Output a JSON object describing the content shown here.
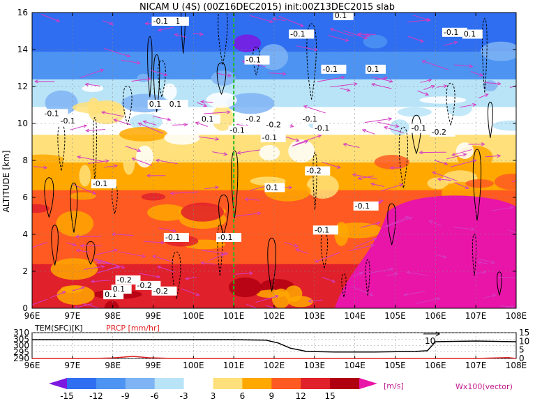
{
  "chart_data": [
    {
      "type": "heatmap",
      "title": "NICAM U (4S) (00Z16DEC2015) init:00Z13DEC2015 slab",
      "ylabel": "ALTITUDE [km]",
      "xlabel": "",
      "xlim": [
        96,
        108
      ],
      "ylim": [
        0,
        16
      ],
      "x_ticks": [
        "96E",
        "97E",
        "98E",
        "99E",
        "100E",
        "101E",
        "102E",
        "103E",
        "104E",
        "105E",
        "106E",
        "107E",
        "108E"
      ],
      "y_ticks": [
        "0",
        "2",
        "4",
        "6",
        "8",
        "10",
        "12",
        "14",
        "16"
      ],
      "grid": true,
      "marker_line_x": 101,
      "layers": [
        {
          "alt": [
            0,
            2.5
          ],
          "value": 12
        },
        {
          "alt": [
            2.5,
            4.5
          ],
          "value": 11
        },
        {
          "alt": [
            4.5,
            6.5
          ],
          "value": 10
        },
        {
          "alt": [
            6.5,
            8
          ],
          "value": 8
        },
        {
          "alt": [
            8,
            9.5
          ],
          "value": 5
        },
        {
          "alt": [
            9.5,
            11
          ],
          "value": 0
        },
        {
          "alt": [
            11,
            12.5
          ],
          "value": -4
        },
        {
          "alt": [
            12.5,
            14
          ],
          "value": -10
        },
        {
          "alt": [
            14,
            16
          ],
          "value": -15
        }
      ],
      "contour_labels": [
        {
          "text": "-0.1",
          "x": 99.3,
          "y": 15.4
        },
        {
          "text": "-0.1",
          "x": 99.0,
          "y": 15.4
        },
        {
          "text": "0.1",
          "x": 103.5,
          "y": 15.7
        },
        {
          "text": "-0.1",
          "x": 102.4,
          "y": 14.7
        },
        {
          "text": "-0.1",
          "x": 106.2,
          "y": 14.8
        },
        {
          "text": "0.1",
          "x": 106.7,
          "y": 14.7
        },
        {
          "text": "-0.1",
          "x": 101.3,
          "y": 13.3
        },
        {
          "text": "-0.1",
          "x": 103.2,
          "y": 12.8
        },
        {
          "text": "0.1",
          "x": 104.3,
          "y": 12.8
        },
        {
          "text": "-0.1",
          "x": 96.3,
          "y": 10.4
        },
        {
          "text": "-0.1",
          "x": 96.7,
          "y": 10.0
        },
        {
          "text": "0.1",
          "x": 98.9,
          "y": 10.9
        },
        {
          "text": "0.1",
          "x": 99.4,
          "y": 10.9
        },
        {
          "text": "0.1",
          "x": 100.2,
          "y": 10.1
        },
        {
          "text": "-0.2",
          "x": 101.3,
          "y": 10.1
        },
        {
          "text": "-0.2",
          "x": 101.8,
          "y": 9.8
        },
        {
          "text": "-0.1",
          "x": 100.9,
          "y": 9.5
        },
        {
          "text": "-0.1",
          "x": 101.7,
          "y": 9.1
        },
        {
          "text": "-0.1",
          "x": 103.0,
          "y": 9.6
        },
        {
          "text": "-0.1",
          "x": 105.4,
          "y": 9.6
        },
        {
          "text": "-0.2",
          "x": 105.9,
          "y": 9.4
        },
        {
          "text": "-0.1",
          "x": 102.7,
          "y": 10.1
        },
        {
          "text": "-0.1",
          "x": 97.5,
          "y": 6.6
        },
        {
          "text": "-0.2",
          "x": 102.8,
          "y": 7.3
        },
        {
          "text": "0.1",
          "x": 101.8,
          "y": 6.4
        },
        {
          "text": "-0.1",
          "x": 104.0,
          "y": 5.4
        },
        {
          "text": "-0.1",
          "x": 99.3,
          "y": 3.7
        },
        {
          "text": "-0.1",
          "x": 100.6,
          "y": 3.7
        },
        {
          "text": "-0.1",
          "x": 103.0,
          "y": 4.1
        },
        {
          "text": "-0.2",
          "x": 98.1,
          "y": 1.4
        },
        {
          "text": "-0.2",
          "x": 98.6,
          "y": 1.1
        },
        {
          "text": "0.1",
          "x": 97.8,
          "y": 0.6
        },
        {
          "text": "0.1",
          "x": 98.0,
          "y": 0.9
        },
        {
          "text": "-0.2",
          "x": 99.0,
          "y": 0.8
        }
      ]
    },
    {
      "type": "line",
      "label_left": "TEM(SFC)[K]",
      "label_right": "PRCP [mm/hr]",
      "xlim": [
        96,
        108
      ],
      "ylim_left": [
        290,
        310
      ],
      "ylim_right": [
        0,
        15
      ],
      "y_ticks_left": [
        "290",
        "295",
        "300",
        "305",
        "310"
      ],
      "y_ticks_right": [
        "0",
        "5",
        "10",
        "15"
      ],
      "x_ticks": [
        "96E",
        "97E",
        "98E",
        "99E",
        "100E",
        "101E",
        "102E",
        "103E",
        "104E",
        "105E",
        "106E",
        "107E",
        "108E"
      ],
      "annotation": "10",
      "series": [
        {
          "x": [
            96,
            97,
            98,
            99,
            100,
            101,
            101.8,
            102.1,
            102.4,
            102.8,
            103.5,
            104.5,
            105.5,
            105.8,
            106.0,
            107,
            108
          ],
          "values": [
            304.5,
            304.5,
            304.5,
            304.5,
            304.5,
            304.5,
            304.2,
            302.0,
            298.0,
            295.5,
            295.0,
            295.0,
            295.5,
            296.0,
            303.0,
            303.5,
            303.0
          ]
        },
        {
          "x": [
            96,
            97.5,
            98.0,
            98.5,
            98.9,
            99.5,
            101,
            103,
            105,
            106,
            107,
            107.8,
            108
          ],
          "values": [
            0,
            0,
            0.3,
            1.2,
            0.4,
            0,
            0,
            0,
            0,
            0,
            0,
            0.5,
            0
          ]
        }
      ]
    },
    {
      "type": "colorbar",
      "levels": [
        "-15",
        "-12",
        "-9",
        "-6",
        "-3",
        "3",
        "6",
        "9",
        "12",
        "15"
      ],
      "colors": [
        "#7d18e0",
        "#2f6ef0",
        "#4c93f2",
        "#7fb4f4",
        "#b9e4f8",
        "#ffffff",
        "#ffe07a",
        "#ffa800",
        "#ff5a22",
        "#e0202a",
        "#b00010",
        "#e815a8"
      ],
      "unit": "[m/s]",
      "vector_note": "Wx100(vector)"
    }
  ]
}
